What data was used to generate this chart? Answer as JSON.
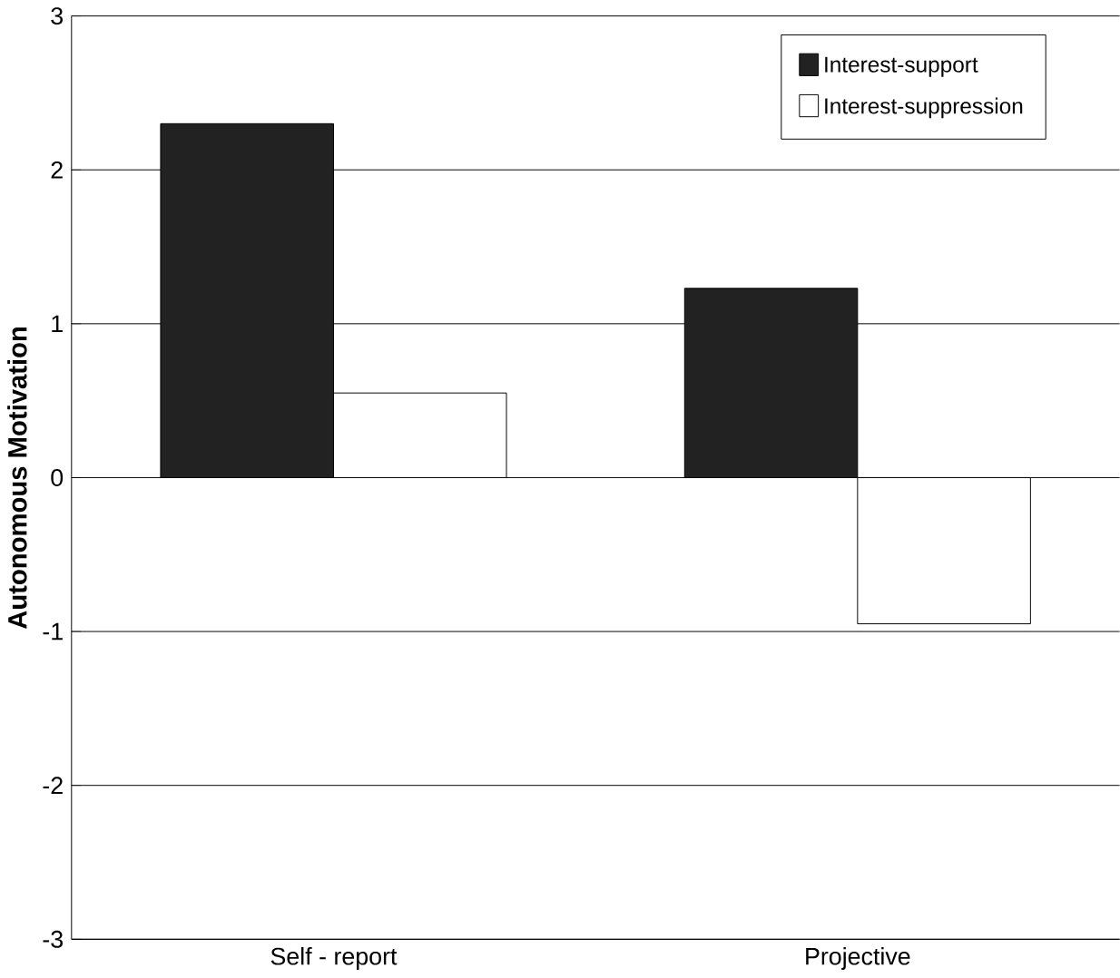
{
  "chart_data": {
    "type": "bar",
    "ylabel": "Autonomous Motivation",
    "categories": [
      "Self - report",
      "Projective"
    ],
    "series": [
      {
        "name": "Interest-support",
        "color": "#222222",
        "values": [
          2.3,
          1.23
        ]
      },
      {
        "name": "Interest-suppression",
        "color": "#ffffff",
        "values": [
          0.55,
          -0.95
        ]
      }
    ],
    "ylim": [
      -3,
      3
    ],
    "yticks": [
      -3,
      -2,
      -1,
      0,
      1,
      2,
      3
    ],
    "grid": "y",
    "legend": "top right"
  }
}
